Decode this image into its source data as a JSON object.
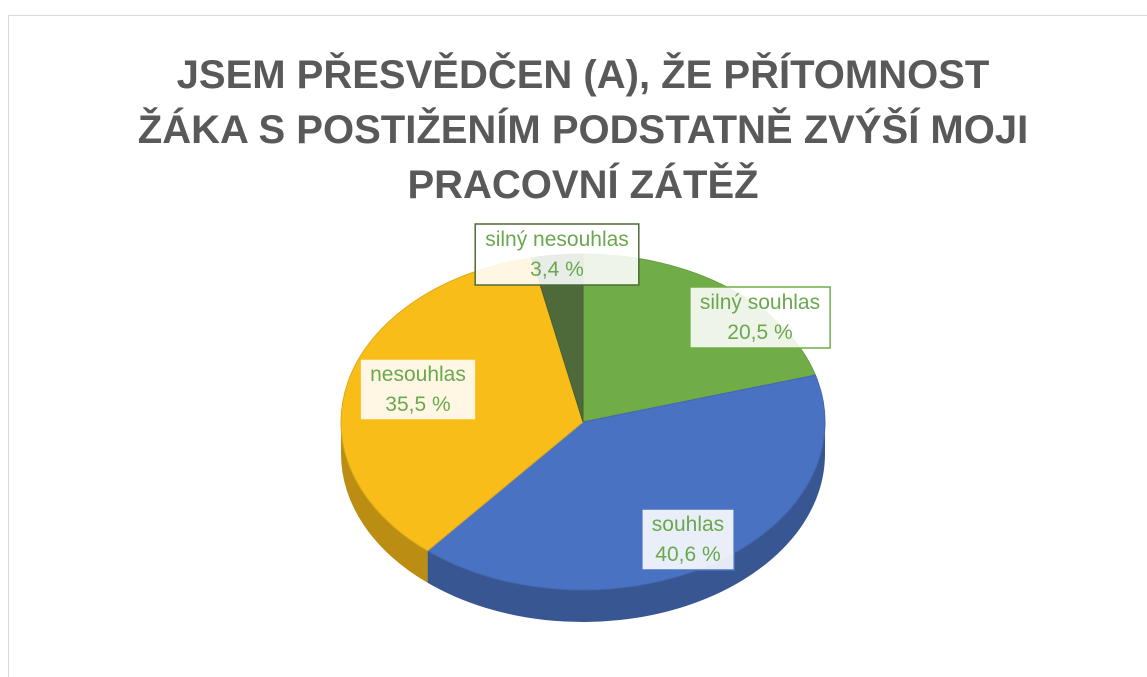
{
  "chart_data": {
    "type": "pie",
    "title": [
      "JSEM PŘESVĚDČEN (A), ŽE PŘÍTOMNOST",
      "ŽÁKA S POSTIŽENÍM PODSTATNĚ ZVÝŠÍ MOJI",
      "PRACOVNÍ ZÁTĚŽ"
    ],
    "categories": [
      "silný souhlas",
      "souhlas",
      "nesouhlas",
      "silný nesouhlas"
    ],
    "values": [
      20.5,
      40.6,
      35.5,
      3.4
    ],
    "value_labels": [
      "20,5 %",
      "40,6 %",
      "35,5 %",
      "3,4 %"
    ],
    "colors": [
      "#70ad47",
      "#4a72c2",
      "#f9bd19",
      "#4f6a3a"
    ]
  }
}
